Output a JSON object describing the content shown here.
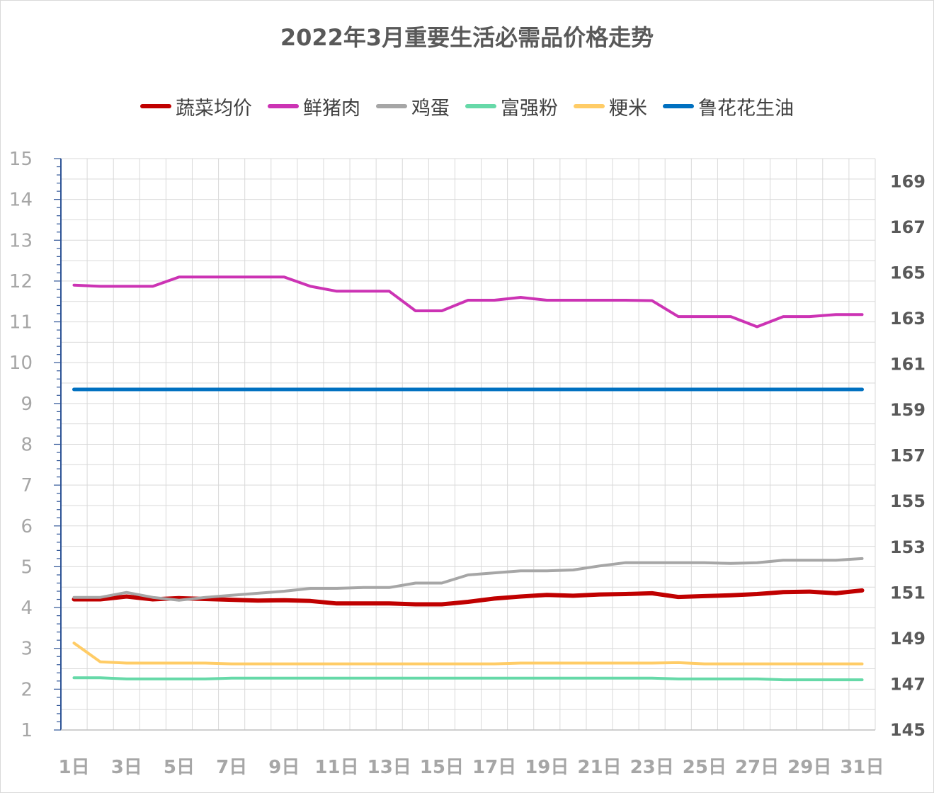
{
  "chart_data": {
    "type": "line",
    "title": "2022年3月重要生活必需品价格走势",
    "legend_position": "top",
    "grid": true,
    "x": [
      1,
      2,
      3,
      4,
      5,
      6,
      7,
      8,
      9,
      10,
      11,
      12,
      13,
      14,
      15,
      16,
      17,
      18,
      19,
      20,
      21,
      22,
      23,
      24,
      25,
      26,
      27,
      28,
      29,
      30,
      31
    ],
    "x_tick_labels": [
      "1日",
      "3日",
      "5日",
      "7日",
      "9日",
      "11日",
      "13日",
      "15日",
      "17日",
      "19日",
      "21日",
      "23日",
      "25日",
      "27日",
      "29日",
      "31日"
    ],
    "y_left_ticks": [
      "1",
      "2",
      "3",
      "4",
      "5",
      "6",
      "7",
      "8",
      "9",
      "10",
      "11",
      "12",
      "13",
      "14",
      "15"
    ],
    "y_right_ticks": [
      "145",
      "147",
      "149",
      "151",
      "153",
      "155",
      "157",
      "159",
      "161",
      "163",
      "165",
      "167",
      "169"
    ],
    "ylim_left": [
      1,
      15
    ],
    "ylim_right": [
      145,
      170
    ],
    "series": [
      {
        "name": "蔬菜均价",
        "color": "#c00000",
        "width": 6,
        "axis": "left",
        "values": [
          4.2,
          4.2,
          4.27,
          4.2,
          4.23,
          4.21,
          4.19,
          4.17,
          4.18,
          4.16,
          4.1,
          4.1,
          4.1,
          4.08,
          4.08,
          4.14,
          4.22,
          4.27,
          4.31,
          4.29,
          4.32,
          4.33,
          4.35,
          4.26,
          4.28,
          4.3,
          4.33,
          4.38,
          4.39,
          4.35,
          4.42
        ]
      },
      {
        "name": "鲜猪肉",
        "color": "#cc33b4",
        "width": 4,
        "axis": "left",
        "values": [
          11.9,
          11.87,
          11.87,
          11.87,
          12.1,
          12.1,
          12.1,
          12.1,
          12.1,
          11.87,
          11.75,
          11.75,
          11.75,
          11.27,
          11.27,
          11.53,
          11.53,
          11.6,
          11.53,
          11.53,
          11.53,
          11.53,
          11.52,
          11.13,
          11.13,
          11.13,
          10.88,
          11.13,
          11.13,
          11.18,
          11.18
        ]
      },
      {
        "name": "鸡蛋",
        "color": "#a6a6a6",
        "width": 4,
        "axis": "left",
        "values": [
          4.25,
          4.25,
          4.37,
          4.25,
          4.18,
          4.25,
          4.3,
          4.35,
          4.4,
          4.47,
          4.47,
          4.49,
          4.49,
          4.6,
          4.6,
          4.8,
          4.85,
          4.9,
          4.9,
          4.92,
          5.02,
          5.1,
          5.1,
          5.1,
          5.1,
          5.08,
          5.1,
          5.16,
          5.16,
          5.16,
          5.2
        ]
      },
      {
        "name": "富强粉",
        "color": "#66d9a8",
        "width": 4,
        "axis": "left",
        "values": [
          2.28,
          2.28,
          2.25,
          2.25,
          2.25,
          2.25,
          2.27,
          2.27,
          2.27,
          2.27,
          2.27,
          2.27,
          2.27,
          2.27,
          2.27,
          2.27,
          2.27,
          2.27,
          2.27,
          2.27,
          2.27,
          2.27,
          2.27,
          2.25,
          2.25,
          2.25,
          2.25,
          2.23,
          2.23,
          2.23,
          2.23
        ]
      },
      {
        "name": "粳米",
        "color": "#ffcc66",
        "width": 4,
        "axis": "left",
        "values": [
          3.13,
          2.67,
          2.64,
          2.64,
          2.64,
          2.64,
          2.62,
          2.62,
          2.62,
          2.62,
          2.62,
          2.62,
          2.62,
          2.62,
          2.62,
          2.62,
          2.62,
          2.64,
          2.64,
          2.64,
          2.64,
          2.64,
          2.64,
          2.65,
          2.62,
          2.62,
          2.62,
          2.62,
          2.62,
          2.62,
          2.62
        ]
      },
      {
        "name": "鲁花花生油",
        "color": "#0070c0",
        "width": 5,
        "axis": "right",
        "values": [
          159.9,
          159.9,
          159.9,
          159.9,
          159.9,
          159.9,
          159.9,
          159.9,
          159.9,
          159.9,
          159.9,
          159.9,
          159.9,
          159.9,
          159.9,
          159.9,
          159.9,
          159.9,
          159.9,
          159.9,
          159.9,
          159.9,
          159.9,
          159.9,
          159.9,
          159.9,
          159.9,
          159.9,
          159.9,
          159.9,
          159.9
        ]
      }
    ]
  }
}
